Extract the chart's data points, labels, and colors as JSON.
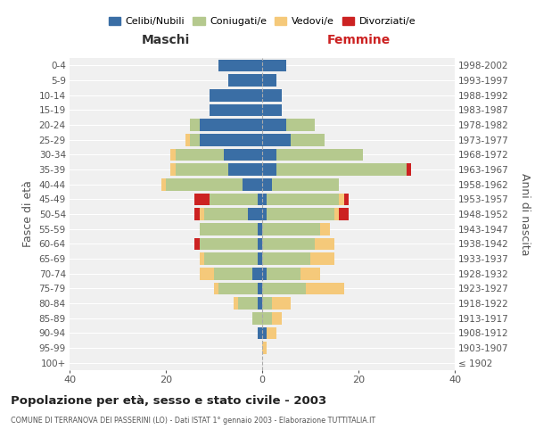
{
  "age_groups": [
    "100+",
    "95-99",
    "90-94",
    "85-89",
    "80-84",
    "75-79",
    "70-74",
    "65-69",
    "60-64",
    "55-59",
    "50-54",
    "45-49",
    "40-44",
    "35-39",
    "30-34",
    "25-29",
    "20-24",
    "15-19",
    "10-14",
    "5-9",
    "0-4"
  ],
  "birth_years": [
    "≤ 1902",
    "1903-1907",
    "1908-1912",
    "1913-1917",
    "1918-1922",
    "1923-1927",
    "1928-1932",
    "1933-1937",
    "1938-1942",
    "1943-1947",
    "1948-1952",
    "1953-1957",
    "1958-1962",
    "1963-1967",
    "1968-1972",
    "1973-1977",
    "1978-1982",
    "1983-1987",
    "1988-1992",
    "1993-1997",
    "1998-2002"
  ],
  "colors": {
    "celibi": "#3a6ea5",
    "coniugati": "#b5c98e",
    "vedovi": "#f5c97a",
    "divorziati": "#cc2222"
  },
  "maschi": {
    "celibi": [
      0,
      0,
      1,
      0,
      1,
      1,
      2,
      1,
      1,
      1,
      3,
      1,
      4,
      7,
      8,
      13,
      13,
      11,
      11,
      7,
      9
    ],
    "coniugati": [
      0,
      0,
      0,
      2,
      4,
      8,
      8,
      11,
      12,
      12,
      9,
      10,
      16,
      11,
      10,
      2,
      2,
      0,
      0,
      0,
      0
    ],
    "vedovi": [
      0,
      0,
      0,
      0,
      1,
      1,
      3,
      1,
      0,
      0,
      1,
      0,
      1,
      1,
      1,
      1,
      0,
      0,
      0,
      0,
      0
    ],
    "divorziati": [
      0,
      0,
      0,
      0,
      0,
      0,
      0,
      0,
      1,
      0,
      1,
      3,
      0,
      0,
      0,
      0,
      0,
      0,
      0,
      0,
      0
    ]
  },
  "femmine": {
    "celibi": [
      0,
      0,
      1,
      0,
      0,
      0,
      1,
      0,
      0,
      0,
      1,
      1,
      2,
      3,
      3,
      6,
      5,
      4,
      4,
      3,
      5
    ],
    "coniugati": [
      0,
      0,
      0,
      2,
      2,
      9,
      7,
      10,
      11,
      12,
      14,
      15,
      14,
      27,
      18,
      7,
      6,
      0,
      0,
      0,
      0
    ],
    "vedovi": [
      0,
      1,
      2,
      2,
      4,
      8,
      4,
      5,
      4,
      2,
      1,
      1,
      0,
      0,
      0,
      0,
      0,
      0,
      0,
      0,
      0
    ],
    "divorziati": [
      0,
      0,
      0,
      0,
      0,
      0,
      0,
      0,
      0,
      0,
      2,
      1,
      0,
      1,
      0,
      0,
      0,
      0,
      0,
      0,
      0
    ]
  },
  "xlim": 40,
  "title": "Popolazione per età, sesso e stato civile - 2003",
  "subtitle": "COMUNE DI TERRANOVA DEI PASSERINI (LO) - Dati ISTAT 1° gennaio 2003 - Elaborazione TUTTITALIA.IT",
  "xlabel_left": "Maschi",
  "xlabel_right": "Femmine",
  "ylabel_left": "Fasce di età",
  "ylabel_right": "Anni di nascita",
  "legend_labels": [
    "Celibi/Nubili",
    "Coniugati/e",
    "Vedovi/e",
    "Divorziati/e"
  ],
  "bg_color": "#f0f0f0",
  "fig_bg": "#ffffff"
}
